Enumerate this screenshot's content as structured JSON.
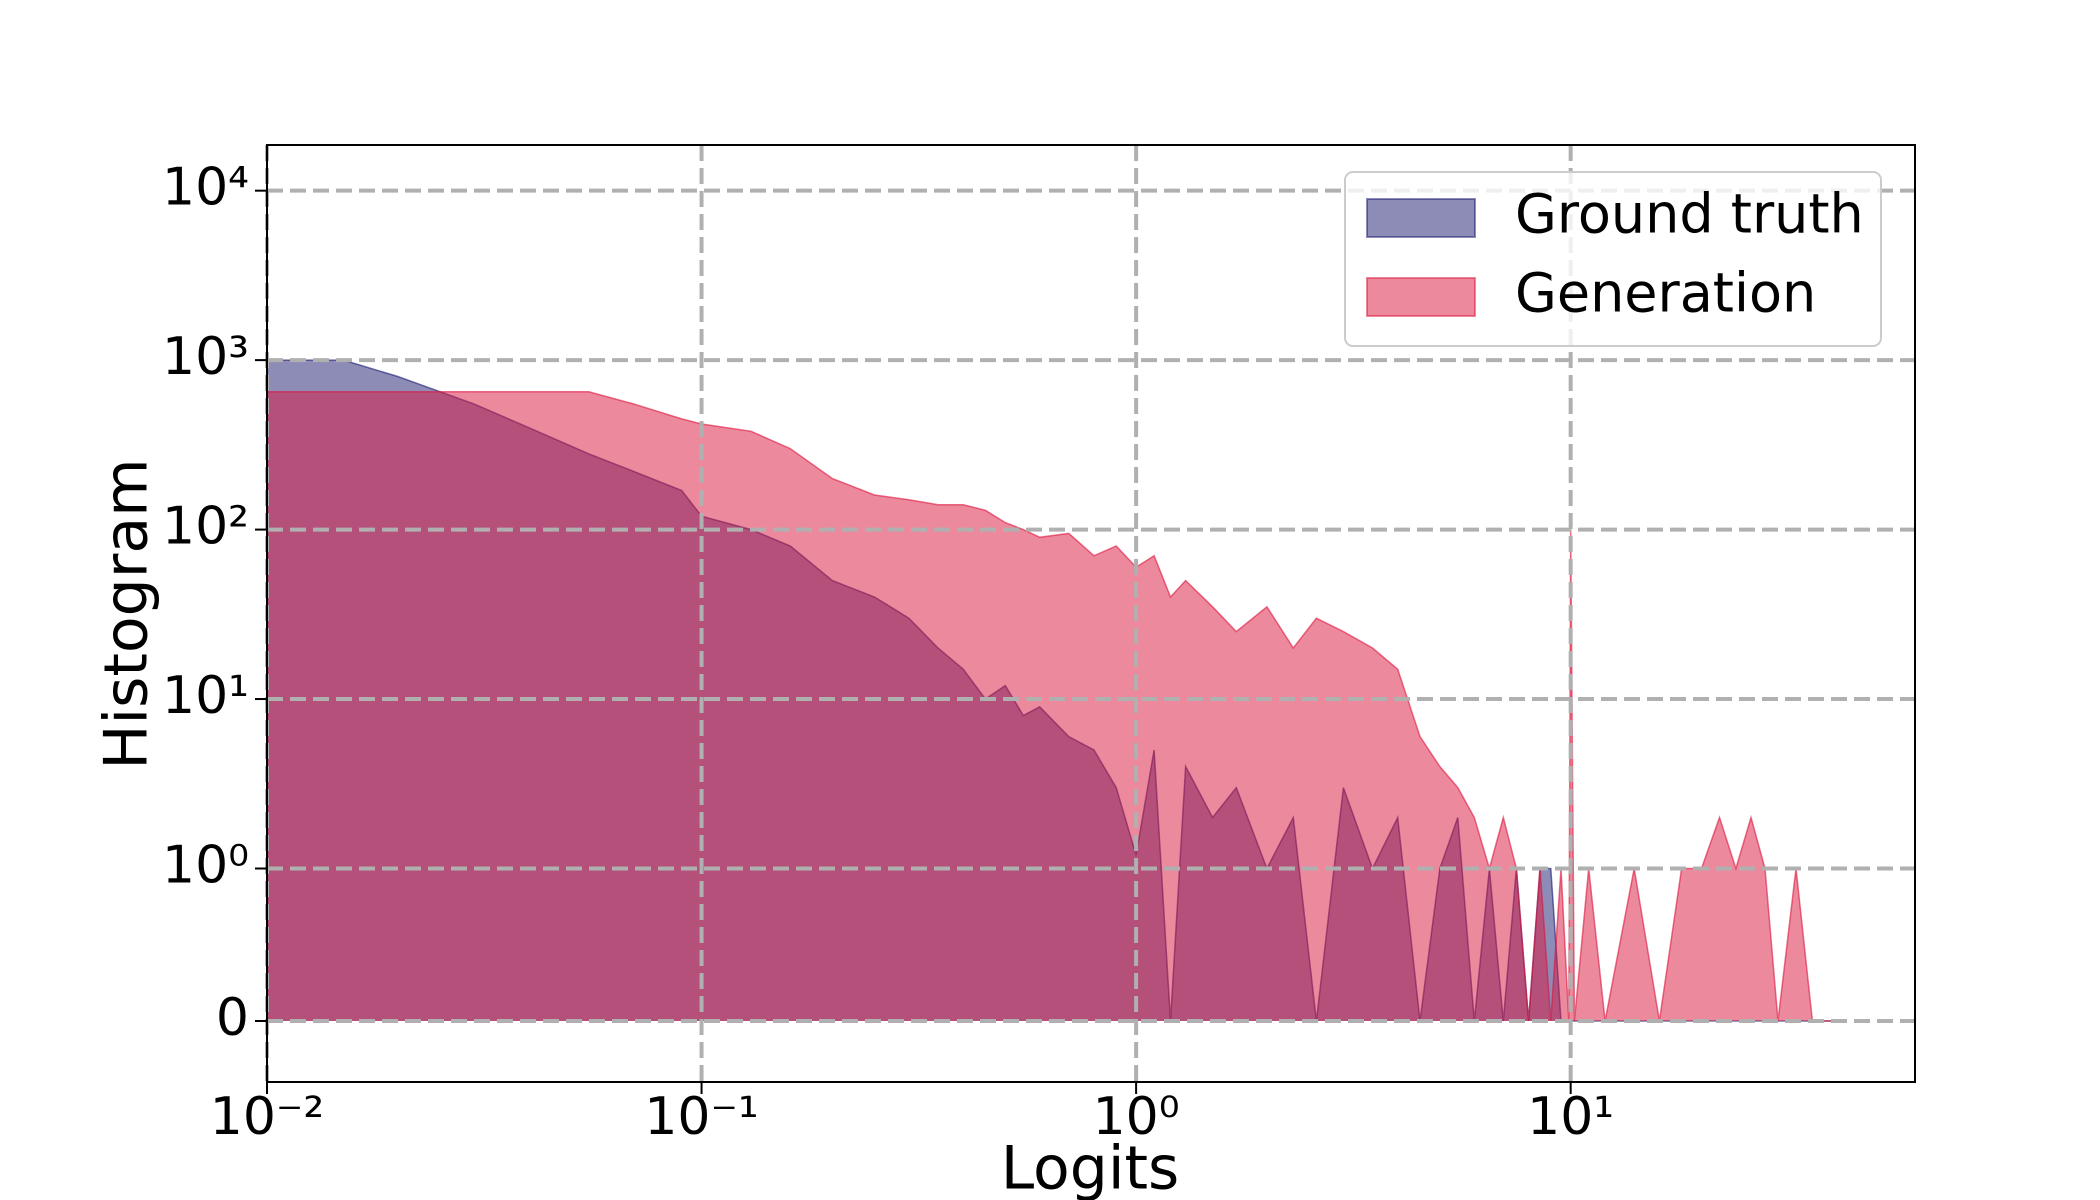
{
  "chart_data": {
    "type": "area",
    "xlabel": "Logits",
    "ylabel": "Histogram",
    "xscale": "log",
    "yscale": "symlog",
    "y_linthresh": 1,
    "xlim": [
      0.01,
      62
    ],
    "ylim": [
      -0.4,
      18600
    ],
    "xticks": [
      {
        "value": 0.01,
        "label": "10⁻²"
      },
      {
        "value": 0.1,
        "label": "10⁻¹"
      },
      {
        "value": 1,
        "label": "10⁰"
      },
      {
        "value": 10,
        "label": "10¹"
      }
    ],
    "yticks": [
      0,
      {
        "value": 1,
        "label": "10⁰"
      },
      {
        "value": 10,
        "label": "10¹"
      },
      {
        "value": 100,
        "label": "10²"
      },
      {
        "value": 1000,
        "label": "10³"
      },
      {
        "value": 10000,
        "label": "10⁴"
      }
    ],
    "grid": true,
    "legend": "upper right",
    "x": [
      0.01,
      0.015,
      0.02,
      0.03,
      0.04,
      0.055,
      0.07,
      0.09,
      0.1,
      0.13,
      0.16,
      0.2,
      0.25,
      0.3,
      0.35,
      0.4,
      0.45,
      0.5,
      0.55,
      0.6,
      0.7,
      0.8,
      0.9,
      1.0,
      1.1,
      1.2,
      1.3,
      1.5,
      1.7,
      2.0,
      2.3,
      2.6,
      3.0,
      3.5,
      4.0,
      4.5,
      5.0,
      5.5,
      6.0,
      6.5,
      7.0,
      7.5,
      8.0,
      8.5,
      9.0,
      9.5,
      9.9,
      10.0,
      10.2,
      11,
      12,
      14,
      16,
      18,
      20,
      22,
      24,
      26,
      28,
      30,
      33,
      36,
      40
    ],
    "series": [
      {
        "name": "Ground truth",
        "color": "#191970",
        "values": [
          1000,
          1000,
          800,
          550,
          400,
          280,
          220,
          170,
          120,
          100,
          80,
          50,
          40,
          30,
          20,
          15,
          10,
          12,
          8,
          9,
          6,
          5,
          3,
          1.2,
          5,
          0,
          4,
          2,
          3,
          1,
          2,
          0,
          3,
          1,
          2,
          0,
          1,
          2,
          0,
          1,
          0,
          1,
          0,
          1,
          1,
          0,
          0,
          0,
          0,
          0,
          0,
          0,
          0,
          0,
          0,
          0,
          0,
          0,
          0,
          0,
          0,
          0,
          0
        ]
      },
      {
        "name": "Generation",
        "color": "#dc143c",
        "values": [
          650,
          650,
          650,
          650,
          650,
          650,
          550,
          450,
          420,
          380,
          300,
          200,
          160,
          150,
          140,
          140,
          130,
          110,
          100,
          90,
          95,
          70,
          80,
          60,
          70,
          40,
          50,
          35,
          25,
          35,
          20,
          30,
          25,
          20,
          15,
          6,
          4,
          3,
          2,
          1,
          2,
          1,
          0,
          1,
          0,
          1,
          0,
          100,
          0,
          1,
          0,
          1,
          0,
          1,
          1,
          2,
          1,
          2,
          1,
          0,
          1,
          0,
          0
        ]
      }
    ]
  }
}
